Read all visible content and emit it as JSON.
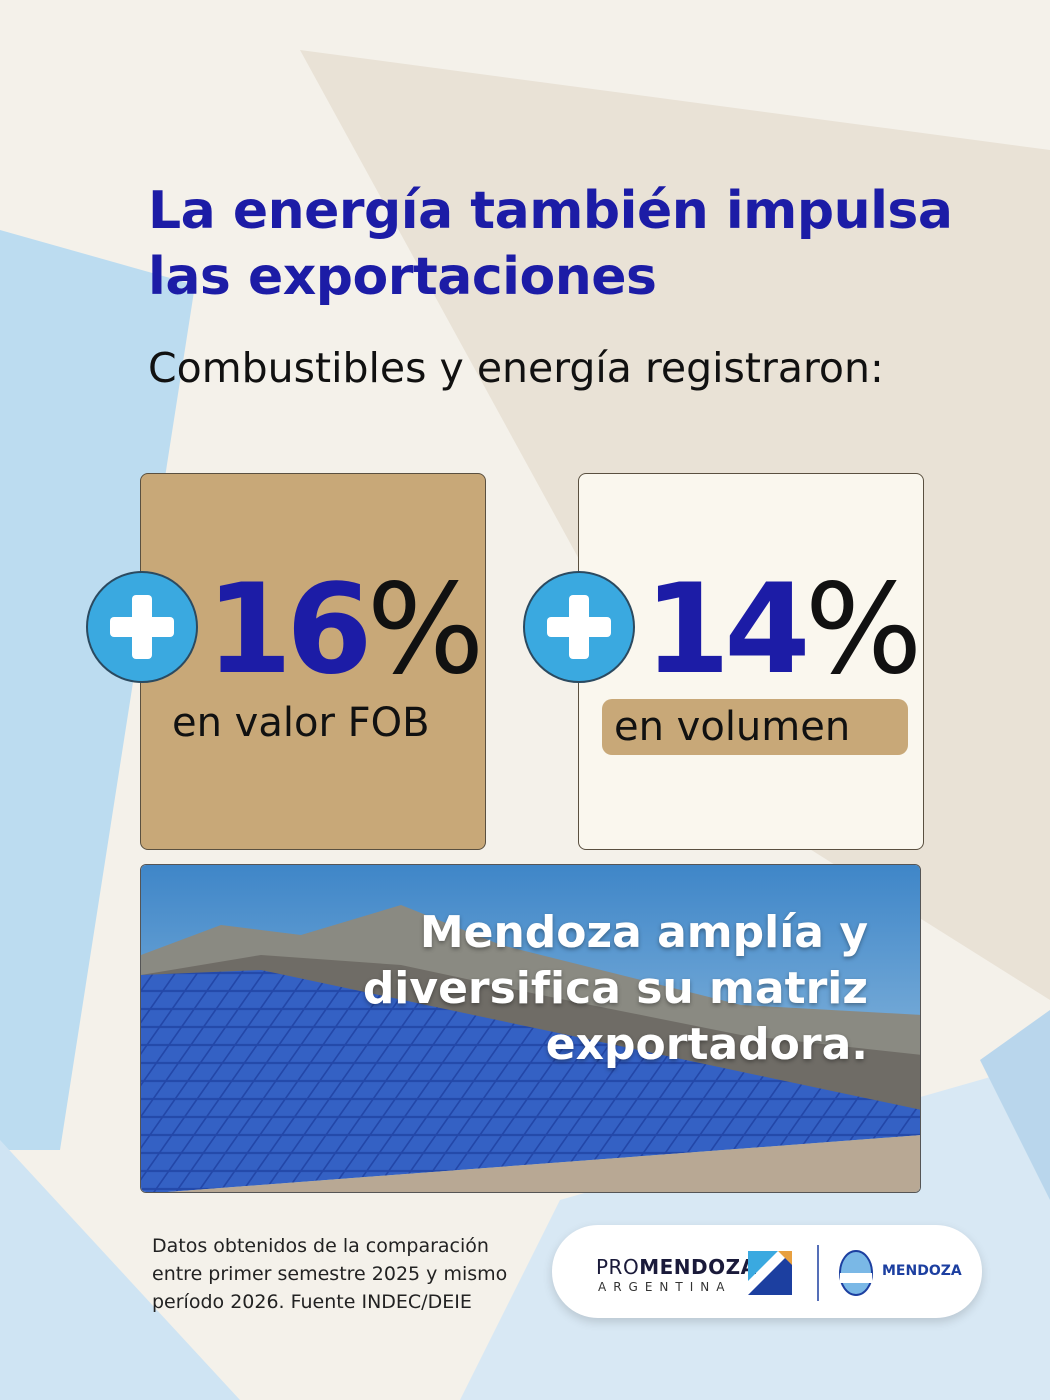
{
  "header": {
    "title": "La energía también impulsa las exportaciones",
    "subtitle": "Combustibles y energía registraron:"
  },
  "cards": [
    {
      "number": "16",
      "unit": "%",
      "label": "en valor FOB"
    },
    {
      "number": "14",
      "unit": "%",
      "label": "en volumen"
    }
  ],
  "banner": {
    "text": "Mendoza amplía y diversifica su matriz exportadora."
  },
  "footer": {
    "note": "Datos obtenidos de la comparación entre primer semestre 2025 y mismo período 2026. Fuente INDEC/DEIE",
    "logo": {
      "pro": "PRO",
      "mendoza": "MENDOZA",
      "country": "ARGENTINA",
      "province": "MENDOZA"
    }
  }
}
